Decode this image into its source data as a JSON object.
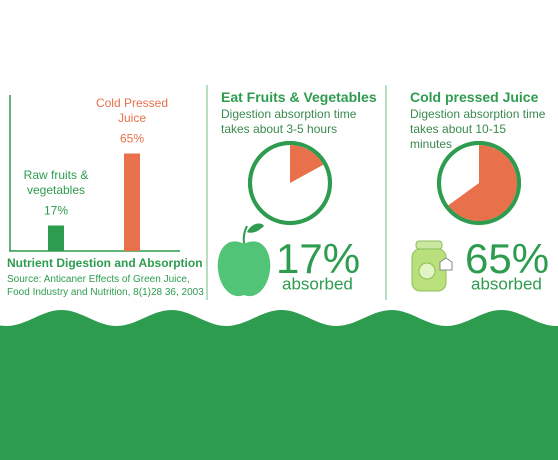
{
  "chart_data": [
    {
      "type": "bar",
      "title": "Nutrient Digestion and Absorption",
      "source": "Source: Anticaner Effects of Green Juice, Food Industry and Nutrition, 8(1)28 36, 2003",
      "categories": [
        "Raw fruits & vegetables",
        "Cold Pressed Juice"
      ],
      "values": [
        17,
        65
      ],
      "value_labels": [
        "17%",
        "65%"
      ],
      "colors": [
        "#2e9c4f",
        "#e8704a"
      ]
    },
    {
      "type": "pie",
      "title": "Eat Fruits & Vegetables",
      "subtitle": "Digestion absorption time takes about 3-5 hours",
      "values": [
        17
      ],
      "value_labels": [
        "17%"
      ],
      "caption": "absorbed",
      "color": "#e8704a"
    },
    {
      "type": "pie",
      "title": "Cold pressed Juice",
      "subtitle": "Digestion absorption time takes about 10-15 minutes",
      "values": [
        65
      ],
      "value_labels": [
        "65%"
      ],
      "caption": "absorbed",
      "color": "#e8704a"
    }
  ]
}
